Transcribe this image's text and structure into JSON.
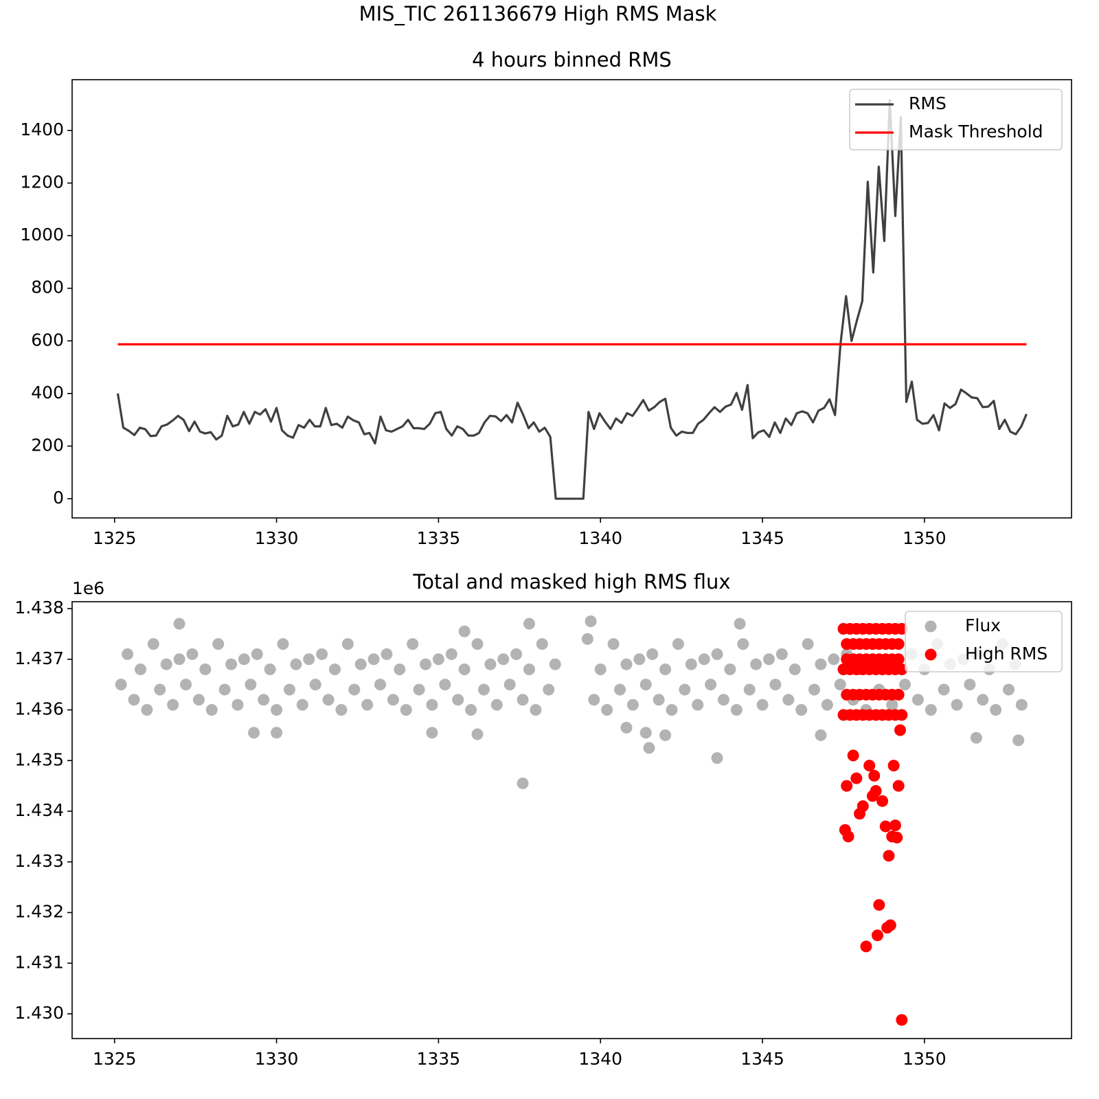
{
  "title": "MIS_TIC 261136679 High RMS Mask",
  "chart_data": [
    {
      "type": "line",
      "title": "4 hours binned RMS",
      "xlim": [
        1323.69,
        1354.54
      ],
      "xticks": [
        1325,
        1330,
        1335,
        1340,
        1345,
        1350
      ],
      "ylim": [
        -73,
        1593
      ],
      "yticks": [
        0,
        200,
        400,
        600,
        800,
        1000,
        1200,
        1400
      ],
      "legend": "upper right",
      "series": [
        {
          "name": "RMS",
          "color": "#404040",
          "x": [
            1325.1,
            1325.27,
            1325.44,
            1325.61,
            1325.78,
            1325.95,
            1326.11,
            1326.28,
            1326.45,
            1326.62,
            1326.79,
            1326.96,
            1327.13,
            1327.3,
            1327.47,
            1327.64,
            1327.8,
            1327.97,
            1328.14,
            1328.31,
            1328.48,
            1328.65,
            1328.82,
            1328.99,
            1329.16,
            1329.33,
            1329.49,
            1329.66,
            1329.83,
            1330.0,
            1330.17,
            1330.34,
            1330.51,
            1330.68,
            1330.85,
            1331.02,
            1331.18,
            1331.35,
            1331.52,
            1331.69,
            1331.86,
            1332.03,
            1332.2,
            1332.37,
            1332.54,
            1332.71,
            1332.87,
            1333.04,
            1333.21,
            1333.38,
            1333.55,
            1333.72,
            1333.89,
            1334.06,
            1334.23,
            1334.39,
            1334.56,
            1334.73,
            1334.9,
            1335.07,
            1335.24,
            1335.41,
            1335.58,
            1335.75,
            1335.92,
            1336.09,
            1336.25,
            1336.42,
            1336.59,
            1336.76,
            1336.93,
            1337.1,
            1337.27,
            1337.44,
            1337.61,
            1337.78,
            1337.94,
            1338.11,
            1338.28,
            1338.45,
            1338.62,
            1338.79,
            1338.96,
            1339.13,
            1339.3,
            1339.47,
            1339.63,
            1339.8,
            1339.97,
            1340.14,
            1340.31,
            1340.48,
            1340.65,
            1340.82,
            1340.99,
            1341.16,
            1341.32,
            1341.49,
            1341.66,
            1341.83,
            1342.0,
            1342.17,
            1342.34,
            1342.51,
            1342.68,
            1342.85,
            1343.01,
            1343.18,
            1343.35,
            1343.52,
            1343.69,
            1343.86,
            1344.03,
            1344.2,
            1344.37,
            1344.54,
            1344.7,
            1344.87,
            1345.04,
            1345.21,
            1345.38,
            1345.55,
            1345.72,
            1345.89,
            1346.06,
            1346.23,
            1346.39,
            1346.56,
            1346.73,
            1346.9,
            1347.07,
            1347.24,
            1347.41,
            1347.58,
            1347.75,
            1347.92,
            1348.08,
            1348.25,
            1348.42,
            1348.59,
            1348.76,
            1348.93,
            1349.1,
            1349.27,
            1349.44,
            1349.61,
            1349.77,
            1349.94,
            1350.11,
            1350.28,
            1350.45,
            1350.62,
            1350.79,
            1350.96,
            1351.13,
            1351.3,
            1351.46,
            1351.63,
            1351.8,
            1351.97,
            1352.14,
            1352.31,
            1352.48,
            1352.65,
            1352.82,
            1352.99,
            1353.15
          ],
          "values": [
            400,
            270,
            258,
            242,
            270,
            264,
            238,
            240,
            275,
            282,
            297,
            315,
            300,
            257,
            293,
            255,
            248,
            253,
            225,
            240,
            315,
            275,
            282,
            330,
            285,
            330,
            320,
            340,
            293,
            345,
            260,
            240,
            232,
            280,
            270,
            300,
            275,
            275,
            345,
            280,
            285,
            270,
            312,
            298,
            290,
            245,
            250,
            210,
            312,
            260,
            255,
            265,
            275,
            300,
            268,
            268,
            265,
            285,
            325,
            330,
            265,
            240,
            275,
            265,
            240,
            240,
            250,
            290,
            315,
            313,
            295,
            318,
            290,
            365,
            320,
            268,
            290,
            255,
            270,
            235,
            0,
            0,
            0,
            0,
            0,
            0,
            330,
            265,
            325,
            293,
            265,
            305,
            288,
            325,
            315,
            345,
            375,
            335,
            348,
            368,
            380,
            270,
            240,
            255,
            250,
            250,
            285,
            300,
            325,
            348,
            330,
            350,
            358,
            402,
            338,
            432,
            230,
            252,
            260,
            235,
            290,
            250,
            305,
            280,
            325,
            332,
            325,
            290,
            335,
            345,
            378,
            318,
            590,
            770,
            600,
            680,
            750,
            1205,
            860,
            1262,
            980,
            1515,
            1075,
            1450,
            368,
            445,
            300,
            285,
            288,
            318,
            260,
            362,
            345,
            360,
            415,
            400,
            385,
            382,
            348,
            350,
            372,
            265,
            300,
            255,
            245,
            275,
            322
          ]
        },
        {
          "name": "Mask Threshold",
          "color": "#ff0000",
          "x": [
            1325.1,
            1353.15
          ],
          "values": [
            587,
            587
          ]
        }
      ]
    },
    {
      "type": "scatter",
      "title": "Total and masked high RMS flux",
      "xlim": [
        1323.69,
        1354.54
      ],
      "xticks": [
        1325,
        1330,
        1335,
        1340,
        1345,
        1350
      ],
      "ylim": [
        1429512,
        1438136
      ],
      "y_offset_text": "1e6",
      "yticks": [
        {
          "value": 1430000,
          "label": "1.430"
        },
        {
          "value": 1431000,
          "label": "1.431"
        },
        {
          "value": 1432000,
          "label": "1.432"
        },
        {
          "value": 1433000,
          "label": "1.433"
        },
        {
          "value": 1434000,
          "label": "1.434"
        },
        {
          "value": 1435000,
          "label": "1.435"
        },
        {
          "value": 1436000,
          "label": "1.436"
        },
        {
          "value": 1437000,
          "label": "1.437"
        },
        {
          "value": 1438000,
          "label": "1.438"
        }
      ],
      "legend": "upper right",
      "series": [
        {
          "name": "Flux",
          "color": "#808080",
          "x": [
            1325.2,
            1325.4,
            1325.6,
            1325.8,
            1326,
            1326.2,
            1326.4,
            1326.6,
            1326.8,
            1327,
            1327.2,
            1327.4,
            1327.6,
            1327.8,
            1328,
            1328.2,
            1328.4,
            1328.6,
            1328.8,
            1329,
            1329.2,
            1329.4,
            1329.6,
            1329.8,
            1330,
            1330.2,
            1330.4,
            1330.6,
            1330.8,
            1331,
            1331.2,
            1331.4,
            1331.6,
            1331.8,
            1332,
            1332.2,
            1332.4,
            1332.6,
            1332.8,
            1333,
            1333.2,
            1333.4,
            1333.6,
            1333.8,
            1334,
            1334.2,
            1334.4,
            1334.6,
            1334.8,
            1335,
            1335.2,
            1335.4,
            1335.6,
            1335.8,
            1336,
            1336.2,
            1336.4,
            1336.6,
            1336.8,
            1337,
            1337.2,
            1337.4,
            1337.6,
            1337.8,
            1338,
            1338.2,
            1338.4,
            1338.6,
            1339.6,
            1339.8,
            1340,
            1340.2,
            1340.4,
            1340.6,
            1340.8,
            1341,
            1341.2,
            1341.4,
            1341.6,
            1341.8,
            1342,
            1342.2,
            1342.4,
            1342.6,
            1342.8,
            1343,
            1343.2,
            1343.4,
            1343.6,
            1343.8,
            1344,
            1344.2,
            1344.4,
            1344.6,
            1344.8,
            1345,
            1345.2,
            1345.4,
            1345.6,
            1345.8,
            1346,
            1346.2,
            1346.4,
            1346.6,
            1346.8,
            1347,
            1347.2,
            1347.4,
            1347.6,
            1347.8,
            1348,
            1348.2,
            1348.4,
            1348.6,
            1348.8,
            1349,
            1349.2,
            1349.4,
            1349.6,
            1349.8,
            1350,
            1350.2,
            1350.4,
            1350.6,
            1350.8,
            1351,
            1351.2,
            1351.4,
            1351.6,
            1351.8,
            1352,
            1352.2,
            1352.4,
            1352.6,
            1352.8,
            1353,
            1337.6,
            1343.6,
            1341.5,
            1341.4,
            1334.8,
            1336.2,
            1330.0,
            1329.3,
            1352.9,
            1327.0,
            1339.7,
            1344.3,
            1337.8,
            1335.8,
            1346.8,
            1351.6,
            1340.8,
            1342.0
          ],
          "values": [
            1436500,
            1437100,
            1436200,
            1436800,
            1436000,
            1437300,
            1436400,
            1436900,
            1436100,
            1437000,
            1436500,
            1437100,
            1436200,
            1436800,
            1436000,
            1437300,
            1436400,
            1436900,
            1436100,
            1437000,
            1436500,
            1437100,
            1436200,
            1436800,
            1436000,
            1437300,
            1436400,
            1436900,
            1436100,
            1437000,
            1436500,
            1437100,
            1436200,
            1436800,
            1436000,
            1437300,
            1436400,
            1436900,
            1436100,
            1437000,
            1436500,
            1437100,
            1436200,
            1436800,
            1436000,
            1437300,
            1436400,
            1436900,
            1436100,
            1437000,
            1436500,
            1437100,
            1436200,
            1436800,
            1436000,
            1437300,
            1436400,
            1436900,
            1436100,
            1437000,
            1436500,
            1437100,
            1436200,
            1436800,
            1436000,
            1437300,
            1436400,
            1436900,
            1437400,
            1436200,
            1436800,
            1436000,
            1437300,
            1436400,
            1436900,
            1436100,
            1437000,
            1436500,
            1437100,
            1436200,
            1436800,
            1436000,
            1437300,
            1436400,
            1436900,
            1436100,
            1437000,
            1436500,
            1437100,
            1436200,
            1436800,
            1436000,
            1437300,
            1436400,
            1436900,
            1436100,
            1437000,
            1436500,
            1437100,
            1436200,
            1436800,
            1436000,
            1437300,
            1436400,
            1436900,
            1436100,
            1437000,
            1436500,
            1437100,
            1436200,
            1436800,
            1436000,
            1437300,
            1436400,
            1436900,
            1436100,
            1437000,
            1436500,
            1437100,
            1436200,
            1436800,
            1436000,
            1437300,
            1436400,
            1436900,
            1436100,
            1437000,
            1436500,
            1437100,
            1436200,
            1436800,
            1436000,
            1437300,
            1436400,
            1436900,
            1436100,
            1434550,
            1435050,
            1435250,
            1435550,
            1435550,
            1435520,
            1435550,
            1435550,
            1435400,
            1437700,
            1437750,
            1437700,
            1437700,
            1437550,
            1435500,
            1435450,
            1435650,
            1435500
          ]
        },
        {
          "name": "High RMS",
          "color": "#ff0000",
          "x": [
            1347.5,
            1347.6,
            1347.7,
            1347.8,
            1347.9,
            1348.0,
            1348.1,
            1348.2,
            1348.3,
            1348.4,
            1348.5,
            1348.6,
            1348.7,
            1348.8,
            1348.9,
            1349.0,
            1349.1,
            1349.2,
            1349.3,
            1347.5,
            1347.6,
            1347.7,
            1347.8,
            1347.9,
            1348.0,
            1348.1,
            1348.2,
            1348.3,
            1348.4,
            1348.5,
            1348.6,
            1348.7,
            1348.8,
            1348.9,
            1349.0,
            1349.1,
            1349.2,
            1349.3,
            1347.5,
            1347.6,
            1347.7,
            1347.8,
            1347.9,
            1348.0,
            1348.1,
            1348.2,
            1348.3,
            1348.4,
            1348.5,
            1348.6,
            1348.7,
            1348.8,
            1348.9,
            1349.0,
            1349.1,
            1349.2,
            1349.3,
            1347.6,
            1347.55,
            1347.65,
            1347.8,
            1347.9,
            1348.0,
            1348.1,
            1348.2,
            1348.3,
            1348.4,
            1348.5,
            1348.45,
            1348.6,
            1348.55,
            1348.7,
            1348.8,
            1348.9,
            1348.85,
            1348.95,
            1349.0,
            1349.1,
            1349.15,
            1349.2,
            1349.3,
            1349.05,
            1349.25
          ],
          "values": [
            1437600,
            1437300,
            1437600,
            1437300,
            1437600,
            1437300,
            1437600,
            1437300,
            1437600,
            1437300,
            1437600,
            1437300,
            1437600,
            1437300,
            1437600,
            1437300,
            1437600,
            1437300,
            1437600,
            1436800,
            1436300,
            1436800,
            1436300,
            1436800,
            1436300,
            1436800,
            1436300,
            1436800,
            1436300,
            1436800,
            1436300,
            1436800,
            1436300,
            1436800,
            1436300,
            1436800,
            1436300,
            1436800,
            1435900,
            1437000,
            1435900,
            1437000,
            1435900,
            1437000,
            1435900,
            1437000,
            1435900,
            1437000,
            1435900,
            1437000,
            1435900,
            1437000,
            1435900,
            1437000,
            1435900,
            1437000,
            1435900,
            1434500,
            1433630,
            1433500,
            1435100,
            1434650,
            1433950,
            1434100,
            1431330,
            1434900,
            1434300,
            1434400,
            1434700,
            1432150,
            1431550,
            1434200,
            1433700,
            1433120,
            1431700,
            1431750,
            1433500,
            1433720,
            1433480,
            1434500,
            1429880,
            1434900,
            1435600
          ]
        }
      ]
    }
  ]
}
